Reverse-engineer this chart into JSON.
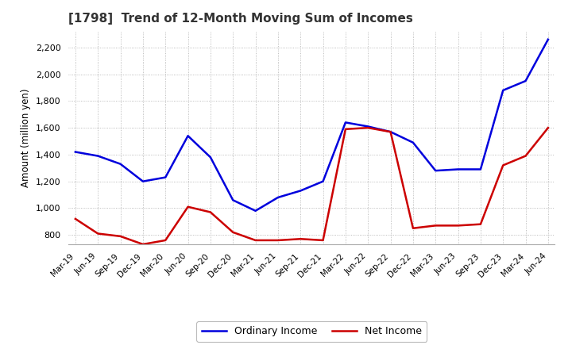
{
  "title": "[1798]  Trend of 12-Month Moving Sum of Incomes",
  "ylabel": "Amount (million yen)",
  "ylim": [
    730,
    2320
  ],
  "yticks": [
    800,
    1000,
    1200,
    1400,
    1600,
    1800,
    2000,
    2200
  ],
  "background_color": "#ffffff",
  "grid_color": "#aaaaaa",
  "ordinary_income_color": "#0000dd",
  "net_income_color": "#cc0000",
  "x_labels": [
    "Mar-19",
    "Jun-19",
    "Sep-19",
    "Dec-19",
    "Mar-20",
    "Jun-20",
    "Sep-20",
    "Dec-20",
    "Mar-21",
    "Jun-21",
    "Sep-21",
    "Dec-21",
    "Mar-22",
    "Jun-22",
    "Sep-22",
    "Dec-22",
    "Mar-23",
    "Jun-23",
    "Sep-23",
    "Dec-23",
    "Mar-24",
    "Jun-24"
  ],
  "ordinary_income": [
    1420,
    1390,
    1330,
    1200,
    1230,
    1540,
    1380,
    1060,
    980,
    1080,
    1130,
    1200,
    1640,
    1610,
    1570,
    1490,
    1280,
    1290,
    1290,
    1880,
    1950,
    2260
  ],
  "net_income": [
    920,
    810,
    790,
    730,
    760,
    1010,
    970,
    820,
    760,
    760,
    770,
    760,
    1590,
    1600,
    1570,
    850,
    870,
    870,
    880,
    1320,
    1390,
    1600
  ]
}
